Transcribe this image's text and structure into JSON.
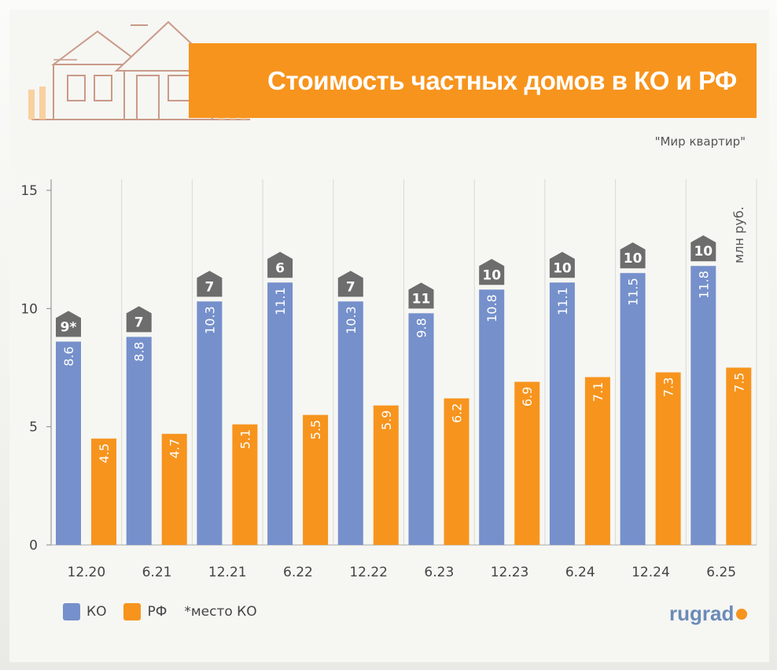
{
  "title": "Стоимость частных домов в КО и РФ",
  "source": "\"Мир квартир\"",
  "unit_label": "млн руб.",
  "legend": {
    "ko": "КО",
    "rf": "РФ",
    "note": "*место КО"
  },
  "logo": "rugrad",
  "colors": {
    "ko": "#7590cb",
    "rf": "#f7941d",
    "badge": "#6d6d6d",
    "title_bar": "#f7941d"
  },
  "chart_data": {
    "type": "bar",
    "categories": [
      "12.20",
      "6.21",
      "12.21",
      "6.22",
      "12.22",
      "6.23",
      "12.23",
      "6.24",
      "12.24",
      "6.25"
    ],
    "series": [
      {
        "name": "КО",
        "values": [
          8.6,
          8.8,
          10.3,
          11.1,
          10.3,
          9.8,
          10.8,
          11.1,
          11.5,
          11.8
        ],
        "labels": [
          "8.6",
          "8.8",
          "10.3",
          "11.1",
          "10.3",
          "9.8",
          "10.8",
          "11.1",
          "11.5",
          "11.8"
        ]
      },
      {
        "name": "РФ",
        "values": [
          4.5,
          4.7,
          5.1,
          5.5,
          5.9,
          6.2,
          6.9,
          7.1,
          7.3,
          7.5
        ],
        "labels": [
          "4.5",
          "4.7",
          "5.1",
          "5.5",
          "5.9",
          "6.2",
          "6.9",
          "7.1",
          "7.3",
          "7.5"
        ]
      }
    ],
    "ko_rank": [
      "9*",
      "7",
      "7",
      "6",
      "7",
      "11",
      "10",
      "10",
      "10",
      "10"
    ],
    "yticks": [
      "0",
      "5",
      "10",
      "15"
    ],
    "ylim": [
      0,
      15
    ],
    "grid": true,
    "legend_position": "bottom-left"
  }
}
